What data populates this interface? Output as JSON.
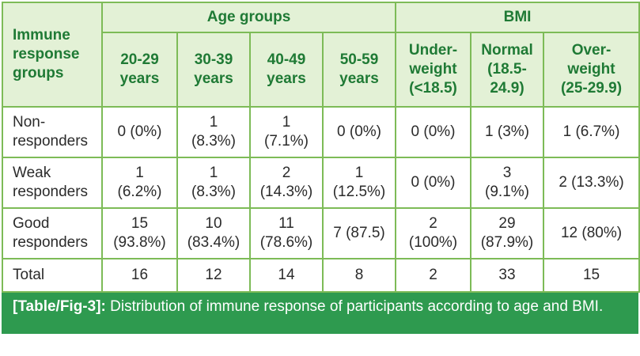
{
  "table": {
    "corner_label": "Immune\nresponse\ngroups",
    "group_headers": {
      "age": "Age groups",
      "bmi": "BMI"
    },
    "column_headers": [
      "20-29\nyears",
      "30-39\nyears",
      "40-49\nyears",
      "50-59\nyears",
      "Under-\nweight\n(<18.5)",
      "Normal\n(18.5-\n24.9)",
      "Over-\nweight\n(25-29.9)"
    ],
    "rows": [
      {
        "label": "Non-\nresponders",
        "cells": [
          "0 (0%)",
          "1\n(8.3%)",
          "1\n(7.1%)",
          "0 (0%)",
          "0 (0%)",
          "1 (3%)",
          "1 (6.7%)"
        ]
      },
      {
        "label": "Weak\nresponders",
        "cells": [
          "1\n(6.2%)",
          "1\n(8.3%)",
          "2\n(14.3%)",
          "1\n(12.5%)",
          "0 (0%)",
          "3\n(9.1%)",
          "2 (13.3%)"
        ]
      },
      {
        "label": "Good\nresponders",
        "cells": [
          "15\n(93.8%)",
          "10\n(83.4%)",
          "11\n(78.6%)",
          "7 (87.5)",
          "2\n(100%)",
          "29\n(87.9%)",
          "12 (80%)"
        ]
      },
      {
        "label": "Total",
        "cells": [
          "16",
          "12",
          "14",
          "8",
          "2",
          "33",
          "15"
        ]
      }
    ]
  },
  "caption": {
    "ref": "[Table/Fig-3]:",
    "text": " Distribution of immune response of participants according to age and BMI."
  },
  "colors": {
    "border": "#7dbb57",
    "header_bg": "#e3f1d6",
    "header_text": "#1f7a35",
    "caption_bg": "#2e9a4f"
  }
}
